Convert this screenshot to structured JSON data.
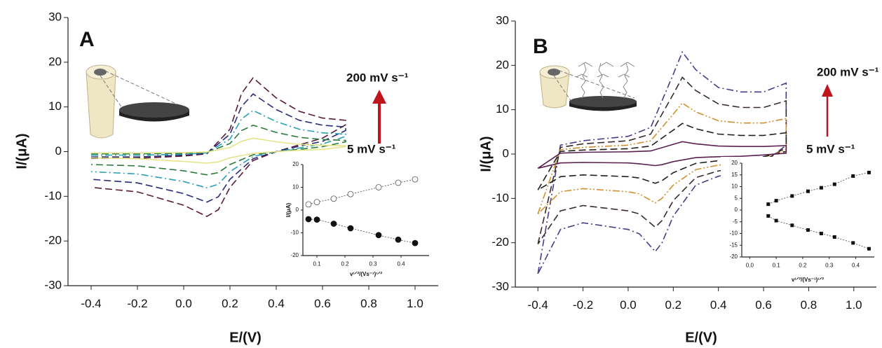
{
  "chart_data": [
    {
      "type": "line",
      "panel_label": "A",
      "annotations": [
        "200 mV s⁻¹",
        "5 mV s⁻¹"
      ],
      "x_label": "E/(V)",
      "y_label": "I/(μA)",
      "xlim": [
        -0.5,
        1.1
      ],
      "ylim": [
        -30,
        30
      ],
      "xticks": [
        -0.4,
        -0.2,
        {
          "value": 0,
          "label": "0.0"
        },
        0.2,
        0.4,
        0.6,
        0.8,
        {
          "value": 1,
          "label": "1.0"
        }
      ],
      "yticks": [
        -30,
        -20,
        -10,
        0,
        10,
        20,
        30
      ],
      "x": [
        -0.4,
        -0.2,
        0,
        0.1,
        0.2,
        0.25,
        0.3,
        0.4,
        0.5,
        0.6,
        0.7,
        0.7,
        0.6,
        0.5,
        0.4,
        0.3,
        0.2,
        0.15,
        0.1,
        0,
        -0.2,
        -0.4
      ],
      "series": [
        {
          "color": "#5a1a3a",
          "linestyle": "dashed",
          "values": [
            -1.5,
            -1.5,
            -1,
            -0.5,
            5,
            13,
            16.5,
            12,
            9,
            7.5,
            7,
            6,
            3,
            1.5,
            0,
            -2,
            -8,
            -13,
            -14.5,
            -12,
            -9,
            -8
          ]
        },
        {
          "color": "#2a2a7a",
          "linestyle": "dashed",
          "values": [
            -1.2,
            -1.2,
            -0.8,
            -0.4,
            3.9,
            10.1,
            12.9,
            9.4,
            7,
            5.9,
            5.5,
            4.7,
            2.3,
            1.2,
            0,
            -1.6,
            -6.2,
            -10.1,
            -11.3,
            -9.4,
            -7,
            -6.2
          ]
        },
        {
          "color": "#2aa0b8",
          "linestyle": "dashdot",
          "values": [
            -0.8,
            -0.8,
            -0.6,
            -0.3,
            2.8,
            7.3,
            9.2,
            6.7,
            5,
            4.2,
            3.9,
            3.4,
            1.7,
            0.8,
            0,
            -1.1,
            -4.5,
            -7.3,
            -8.1,
            -6.7,
            -5,
            -4.5
          ]
        },
        {
          "color": "#2a7a3a",
          "linestyle": "dashed",
          "values": [
            -0.5,
            -0.5,
            -0.4,
            -0.2,
            1.8,
            4.7,
            5.9,
            4.3,
            3.2,
            2.7,
            2.5,
            2.2,
            1.1,
            0.5,
            0,
            -0.7,
            -2.9,
            -4.7,
            -5.2,
            -4.3,
            -3.2,
            -2.9
          ]
        },
        {
          "color": "#e4e48a",
          "linestyle": "solid",
          "values": [
            -0.3,
            -0.3,
            -0.2,
            -0.1,
            0.9,
            2.3,
            3,
            2.2,
            1.6,
            1.4,
            1.3,
            1.1,
            0.5,
            0.3,
            0,
            -0.4,
            -1.4,
            -2.3,
            -2.6,
            -2.2,
            -1.6,
            -1.4
          ]
        }
      ]
    },
    {
      "type": "line",
      "panel_label": "B",
      "annotations": [
        "200 mV s⁻¹",
        "5 mV s⁻¹"
      ],
      "x_label": "E/(V)",
      "y_label": "I/(μA)",
      "xlim": [
        -0.5,
        1.1
      ],
      "ylim": [
        -30,
        30
      ],
      "xticks": [
        -0.4,
        -0.2,
        {
          "value": 0,
          "label": "0.0"
        },
        0.2,
        0.4,
        0.6,
        0.8,
        {
          "value": 1,
          "label": "1.0"
        }
      ],
      "yticks": [
        -30,
        -20,
        -10,
        0,
        10,
        20,
        30
      ],
      "x": [
        -0.4,
        -0.3,
        -0.2,
        0,
        0.1,
        0.2,
        0.24,
        0.3,
        0.4,
        0.5,
        0.6,
        0.7,
        0.7,
        0.6,
        0.5,
        0.4,
        0.3,
        0.2,
        0.15,
        0.12,
        0.05,
        0,
        -0.2,
        -0.3,
        -0.4
      ],
      "series": [
        {
          "color": "#4a3a8a",
          "linestyle": "dashdot",
          "values": [
            -27,
            2,
            3,
            4,
            6,
            18,
            23,
            19,
            15,
            14,
            14,
            16,
            2,
            -2,
            -4,
            -5,
            -7,
            -14,
            -20,
            -22,
            -18,
            -17,
            -15.5,
            -17,
            -27
          ]
        },
        {
          "color": "#3a2a2a",
          "linestyle": "dashed",
          "values": [
            -20.3,
            1.5,
            2.3,
            3,
            4.5,
            13.5,
            17.3,
            14.3,
            11.3,
            10.5,
            10.5,
            12,
            1.5,
            -1.5,
            -3,
            -3.8,
            -5.3,
            -10.5,
            -15,
            -16.5,
            -13.5,
            -12.8,
            -11.6,
            -12.8,
            -20.3
          ]
        },
        {
          "color": "#d09030",
          "linestyle": "dashdotdot",
          "values": [
            -13.5,
            1,
            1.5,
            2,
            3,
            9,
            11.5,
            9.5,
            7.5,
            7,
            7,
            8,
            1,
            -1,
            -2,
            -2.5,
            -3.5,
            -7,
            -10,
            -11,
            -9,
            -8.5,
            -7.8,
            -8.5,
            -13.5
          ]
        },
        {
          "color": "#202020",
          "linestyle": "dashed",
          "values": [
            -8.1,
            0.6,
            0.9,
            1.2,
            1.8,
            5.4,
            6.9,
            5.7,
            4.5,
            4.2,
            4.2,
            4.8,
            0.6,
            -0.6,
            -1.2,
            -1.5,
            -2.1,
            -4.2,
            -6,
            -6.6,
            -5.4,
            -5.1,
            -4.7,
            -5.1,
            -8.1
          ]
        },
        {
          "color": "#5a2050",
          "linestyle": "solid",
          "values": [
            -3.2,
            0.2,
            0.4,
            0.5,
            0.7,
            2.2,
            2.8,
            2.3,
            1.8,
            1.7,
            1.7,
            1.9,
            0.2,
            -0.2,
            -0.5,
            -0.6,
            -0.8,
            -1.7,
            -2.4,
            -2.6,
            -2.2,
            -2,
            -1.9,
            -2,
            -3.2
          ]
        }
      ]
    },
    {
      "type": "scatter",
      "x_label": "v¹ᐟ²/(Vs⁻¹)¹ᐟ²",
      "y_label": "I/(μA)",
      "xlim": [
        0.05,
        0.5
      ],
      "ylim": [
        -20,
        20
      ],
      "xticks": [
        0.1,
        0.2,
        0.3,
        0.4
      ],
      "yticks": [
        -20,
        -10,
        0,
        10,
        20
      ],
      "series": [
        {
          "color": "#555555",
          "marker": "open",
          "x": [
            0.07,
            0.1,
            0.16,
            0.22,
            0.32,
            0.39,
            0.45
          ],
          "values": [
            2.5,
            3.5,
            5,
            7,
            10,
            12,
            13.5
          ]
        },
        {
          "color": "#111111",
          "marker": "filled",
          "x": [
            0.07,
            0.1,
            0.16,
            0.22,
            0.32,
            0.39,
            0.45
          ],
          "values": [
            -4,
            -4.2,
            -6,
            -8,
            -11,
            -13,
            -14.5
          ]
        }
      ]
    },
    {
      "type": "scatter",
      "x_label": "v¹ᐟ²/(Vs⁻¹)¹ᐟ²",
      "xlim": [
        -0.03,
        0.47
      ],
      "ylim": [
        -20,
        20
      ],
      "xticks": [
        {
          "value": 0,
          "label": "0.0"
        },
        0.1,
        0.2,
        0.3,
        0.4
      ],
      "yticks": [
        -20,
        -15,
        -10,
        -5,
        0,
        5,
        10,
        15,
        20
      ],
      "series": [
        {
          "color": "#111111",
          "marker": "square",
          "x": [
            0.07,
            0.1,
            0.16,
            0.22,
            0.27,
            0.32,
            0.39,
            0.45
          ],
          "values": [
            2.5,
            4,
            6,
            8,
            9.5,
            11,
            14.5,
            16
          ]
        },
        {
          "color": "#111111",
          "marker": "square",
          "x": [
            0.07,
            0.1,
            0.16,
            0.22,
            0.27,
            0.32,
            0.39,
            0.45
          ],
          "values": [
            -2.5,
            -4.5,
            -6.5,
            -8.5,
            -10,
            -11.5,
            -14,
            -16.5
          ]
        }
      ]
    }
  ]
}
